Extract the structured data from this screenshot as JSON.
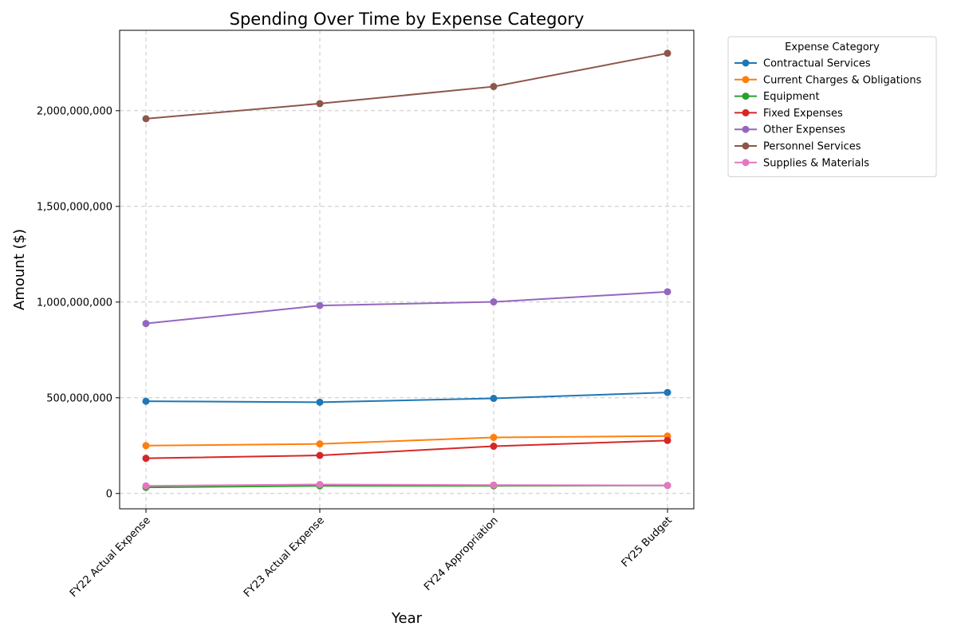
{
  "chart_data": {
    "type": "line",
    "title": "Spending Over Time by Expense Category",
    "xlabel": "Year",
    "ylabel": "Amount ($)",
    "categories": [
      "FY22 Actual Expense",
      "FY23 Actual Expense",
      "FY24 Appropriation",
      "FY25 Budget"
    ],
    "yticks": [
      0,
      500000000,
      1000000000,
      1500000000,
      2000000000
    ],
    "ytick_labels": [
      "0",
      "500,000,000",
      "1,000,000,000",
      "1,500,000,000",
      "2,000,000,000"
    ],
    "ylim": [
      -80000000,
      2420000000
    ],
    "grid": true,
    "legend": {
      "title": "Expense Category",
      "placement": "outside-top-right"
    },
    "series": [
      {
        "name": "Contractual Services",
        "color": "#1f77b4",
        "values": [
          482000000,
          477000000,
          497000000,
          528000000
        ]
      },
      {
        "name": "Current Charges & Obligations",
        "color": "#ff7f0e",
        "values": [
          250000000,
          259000000,
          293000000,
          300000000
        ]
      },
      {
        "name": "Equipment",
        "color": "#2ca02c",
        "values": [
          32000000,
          40000000,
          40000000,
          42000000
        ]
      },
      {
        "name": "Fixed Expenses",
        "color": "#d62728",
        "values": [
          184000000,
          199000000,
          247000000,
          277000000
        ]
      },
      {
        "name": "Other Expenses",
        "color": "#9467bd",
        "values": [
          888000000,
          982000000,
          1001000000,
          1054000000
        ]
      },
      {
        "name": "Personnel Services",
        "color": "#8c564b",
        "values": [
          1958000000,
          2037000000,
          2126000000,
          2300000000
        ]
      },
      {
        "name": "Supplies & Materials",
        "color": "#e377c2",
        "values": [
          40000000,
          47000000,
          44000000,
          42000000
        ]
      }
    ]
  }
}
